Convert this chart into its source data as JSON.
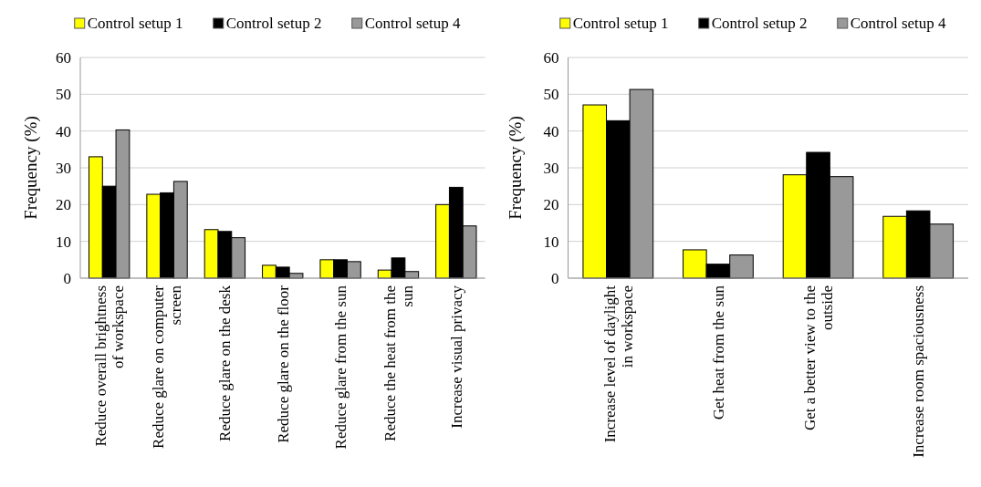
{
  "chart_data": [
    {
      "type": "bar",
      "ylabel": "Frequency (%)",
      "categories": [
        "Reduce overall brightness of workspace",
        "Reduce glare on computer screen",
        "Reduce glare on the desk",
        "Reduce glare on the floor",
        "Reduce glare from the sun",
        "Reduce the heat from the sun",
        "Increase visual privacy"
      ],
      "series": [
        {
          "name": "Control setup 1",
          "color": "#ffff00",
          "values": [
            33,
            22.8,
            13.2,
            3.5,
            5,
            2.2,
            20
          ]
        },
        {
          "name": "Control setup 2",
          "color": "#000000",
          "values": [
            25,
            23.2,
            12.7,
            3,
            5,
            5.5,
            24.7
          ]
        },
        {
          "name": "Control setup 4",
          "color": "#999999",
          "values": [
            40.3,
            26.3,
            11,
            1.3,
            4.5,
            1.8,
            14.2
          ]
        }
      ],
      "ylim": [
        0,
        60
      ],
      "yticks": [
        0,
        10,
        20,
        30,
        40,
        50,
        60
      ],
      "grid": "y",
      "legend": "top"
    },
    {
      "type": "bar",
      "ylabel": "Frequency (%)",
      "categories": [
        "Increase level of daylight in workspace",
        "Get heat from the sun",
        "Get a better view to the outside",
        "Increase room spaciousness"
      ],
      "series": [
        {
          "name": "Control setup 1",
          "color": "#ffff00",
          "values": [
            47.1,
            7.7,
            28.1,
            16.8
          ]
        },
        {
          "name": "Control setup 2",
          "color": "#000000",
          "values": [
            42.8,
            3.8,
            34.2,
            18.3
          ]
        },
        {
          "name": "Control setup 4",
          "color": "#999999",
          "values": [
            51.3,
            6.3,
            27.6,
            14.7
          ]
        }
      ],
      "ylim": [
        0,
        60
      ],
      "yticks": [
        0,
        10,
        20,
        30,
        40,
        50,
        60
      ],
      "grid": "y",
      "legend": "top"
    }
  ]
}
